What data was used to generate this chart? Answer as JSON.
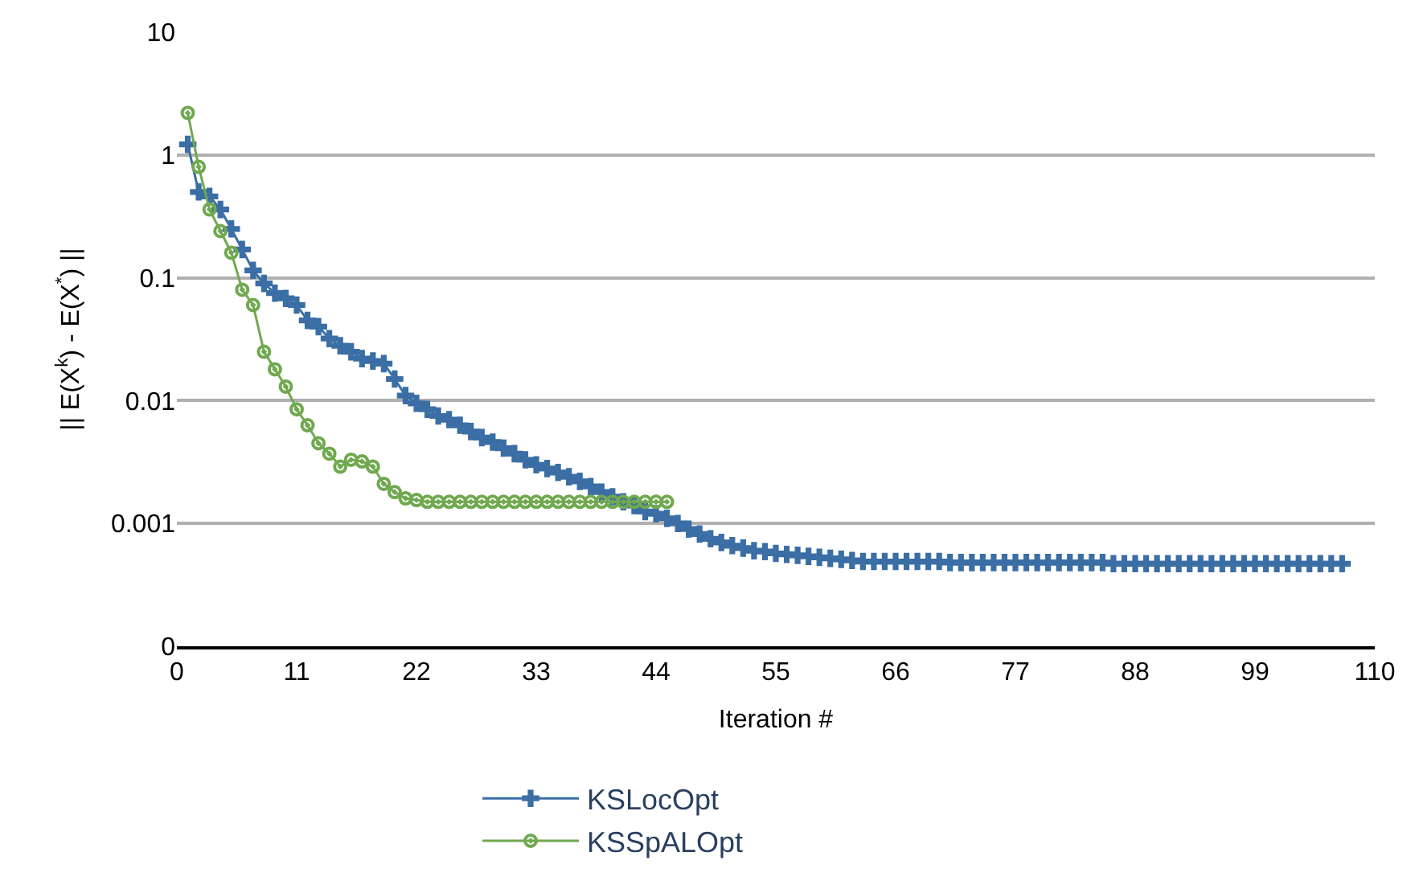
{
  "chart_data": {
    "type": "line",
    "xlabel": "Iteration #",
    "ylabel": "|| E(X$^{k}$) - E(X$^{*}$) ||",
    "log": "y",
    "grid": "y",
    "legend": "bottom",
    "xlim": [
      0,
      110
    ],
    "xticks": [
      0,
      11,
      22,
      33,
      44,
      55,
      66,
      77,
      88,
      99,
      110
    ],
    "ylim": [
      0.0001,
      10
    ],
    "yticks": [
      {
        "value": 0.0001,
        "label": "0"
      },
      0.001,
      0.01,
      0.1,
      1,
      10
    ],
    "series": [
      {
        "name": "KSLocOpt",
        "color": "#3a6ea5",
        "marker": "cross",
        "x": [
          1,
          2,
          3,
          4,
          5,
          6,
          7,
          8,
          9,
          10,
          11,
          12,
          13,
          14,
          15,
          16,
          17,
          18,
          19,
          20,
          21,
          22,
          23,
          24,
          25,
          26,
          27,
          28,
          29,
          30,
          31,
          32,
          33,
          34,
          35,
          36,
          37,
          38,
          39,
          40,
          41,
          42,
          43,
          44,
          45,
          46,
          47,
          48,
          49,
          50,
          51,
          52,
          53,
          54,
          55,
          56,
          57,
          58,
          59,
          60,
          61,
          62,
          63,
          64,
          65,
          66,
          67,
          68,
          69,
          70,
          71,
          72,
          73,
          74,
          75,
          76,
          77,
          78,
          79,
          80,
          81,
          82,
          83,
          84,
          85,
          86,
          87,
          88,
          89,
          90,
          91,
          92,
          93,
          94,
          95,
          96,
          97,
          98,
          99,
          100,
          101,
          102,
          103,
          104,
          105,
          106,
          107
        ],
        "values": [
          1.22,
          0.5,
          0.46,
          0.36,
          0.25,
          0.17,
          0.115,
          0.09,
          0.075,
          0.068,
          0.06,
          0.045,
          0.04,
          0.032,
          0.028,
          0.025,
          0.022,
          0.021,
          0.02,
          0.015,
          0.011,
          0.0095,
          0.0085,
          0.0075,
          0.007,
          0.0063,
          0.0056,
          0.005,
          0.0046,
          0.0041,
          0.0037,
          0.0033,
          0.003,
          0.0028,
          0.0026,
          0.0024,
          0.0022,
          0.002,
          0.0018,
          0.00165,
          0.0015,
          0.0014,
          0.00125,
          0.0012,
          0.0011,
          0.001,
          0.0009,
          0.00082,
          0.00075,
          0.0007,
          0.00066,
          0.00063,
          0.0006,
          0.00059,
          0.00057,
          0.00056,
          0.00055,
          0.00054,
          0.00053,
          0.00052,
          0.00051,
          0.0005,
          0.00049,
          0.00049,
          0.00049,
          0.00049,
          0.00049,
          0.00049,
          0.00049,
          0.00049,
          0.00048,
          0.00048,
          0.00048,
          0.00048,
          0.00048,
          0.00048,
          0.00048,
          0.00048,
          0.00048,
          0.00048,
          0.00048,
          0.00048,
          0.00048,
          0.00048,
          0.00048,
          0.00047,
          0.00047,
          0.00047,
          0.00047,
          0.00047,
          0.00047,
          0.00047,
          0.00047,
          0.00047,
          0.00047,
          0.00047,
          0.00047,
          0.00047,
          0.00047,
          0.00047,
          0.00047,
          0.00047,
          0.00047,
          0.00047,
          0.00047,
          0.00047,
          0.00047
        ]
      },
      {
        "name": "KSSpALOpt",
        "color": "#70a94f",
        "marker": "circle",
        "x": [
          1,
          2,
          3,
          4,
          5,
          6,
          7,
          8,
          9,
          10,
          11,
          12,
          13,
          14,
          15,
          16,
          17,
          18,
          19,
          20,
          21,
          22,
          23,
          24,
          25,
          26,
          27,
          28,
          29,
          30,
          31,
          32,
          33,
          34,
          35,
          36,
          37,
          38,
          39,
          40,
          41,
          42,
          43,
          44,
          45
        ],
        "values": [
          2.2,
          0.8,
          0.36,
          0.24,
          0.16,
          0.08,
          0.06,
          0.025,
          0.018,
          0.013,
          0.0085,
          0.0063,
          0.0045,
          0.0037,
          0.0029,
          0.0033,
          0.0032,
          0.0029,
          0.0021,
          0.0018,
          0.0016,
          0.00155,
          0.0015,
          0.0015,
          0.0015,
          0.0015,
          0.0015,
          0.0015,
          0.0015,
          0.0015,
          0.0015,
          0.0015,
          0.0015,
          0.0015,
          0.0015,
          0.0015,
          0.0015,
          0.0015,
          0.0015,
          0.0015,
          0.0015,
          0.0015,
          0.0015,
          0.0015,
          0.0015
        ]
      }
    ]
  }
}
